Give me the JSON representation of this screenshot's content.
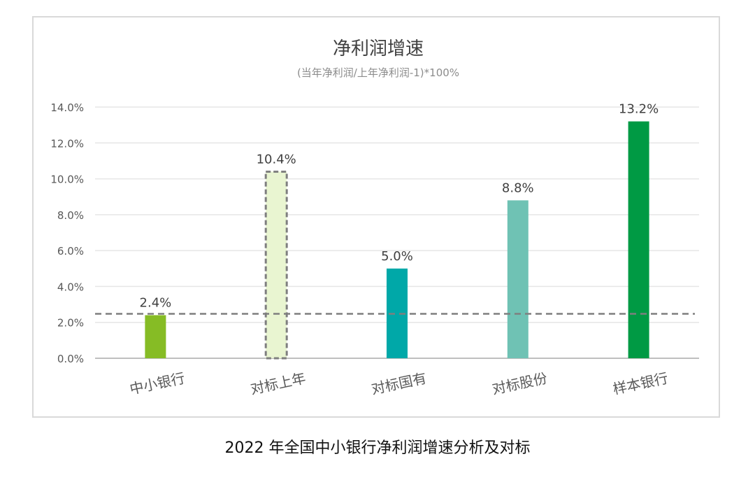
{
  "chart_data": {
    "type": "bar",
    "title": "净利润增速",
    "subtitle": "(当年净利润/上年净利润-1)*100%",
    "categories": [
      "中小银行",
      "对标上年",
      "对标国有",
      "对标股份",
      "样本银行"
    ],
    "values": [
      2.4,
      10.4,
      5.0,
      8.8,
      13.2
    ],
    "value_labels": [
      "2.4%",
      "10.4%",
      "5.0%",
      "8.8%",
      "13.2%"
    ],
    "colors": [
      "#86bc25",
      "#e9f5d1",
      "#00a8a8",
      "#6fc2b4",
      "#009a44"
    ],
    "dashed_bar_index": 1,
    "reference_line": 2.4,
    "ylim": [
      0,
      14
    ],
    "yticks": [
      0,
      2,
      4,
      6,
      8,
      10,
      12,
      14
    ],
    "ytick_labels": [
      "0.0%",
      "2.0%",
      "4.0%",
      "6.0%",
      "8.0%",
      "10.0%",
      "12.0%",
      "14.0%"
    ],
    "xlabel": "",
    "ylabel": "",
    "grid": true
  },
  "caption": "2022 年全国中小银行净利润增速分析及对标"
}
